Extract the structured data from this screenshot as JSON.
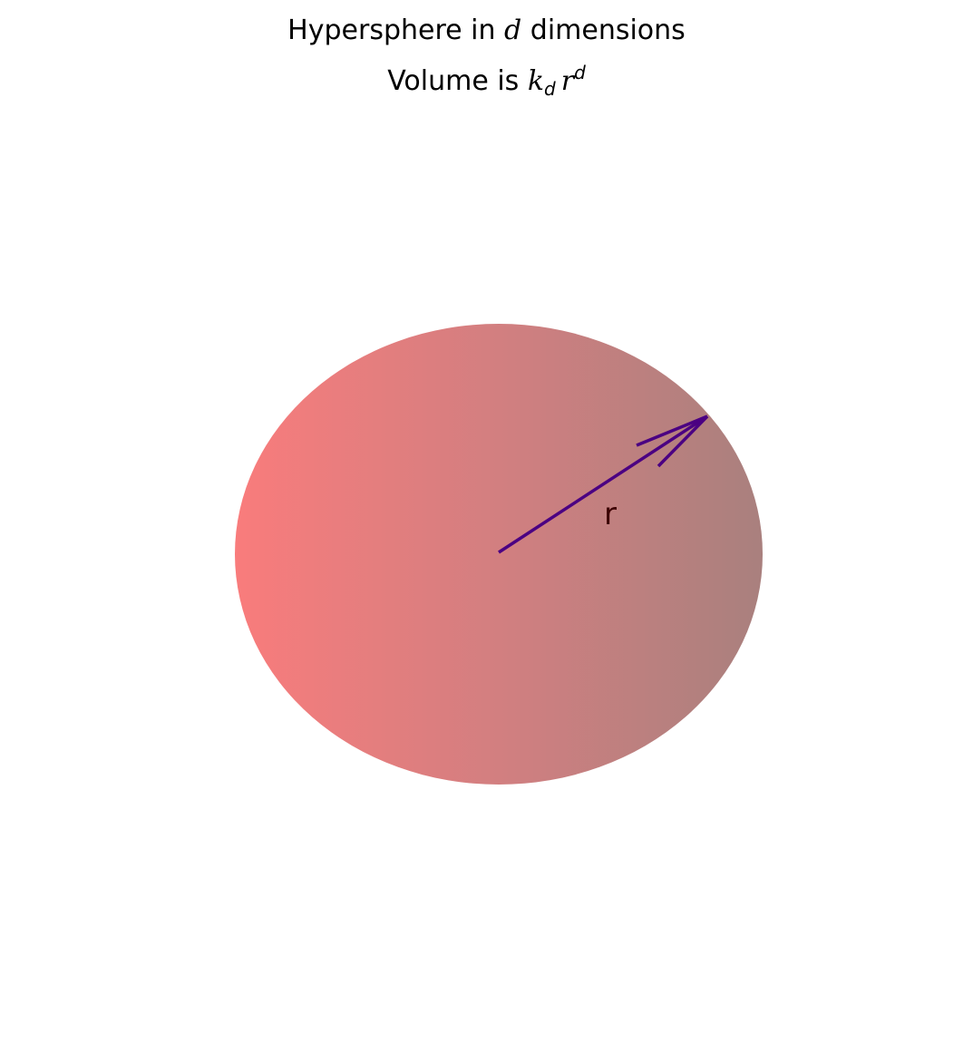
{
  "title": {
    "line1_prefix": "Hypersphere in ",
    "line1_var": "d",
    "line1_suffix": " dimensions",
    "line2_prefix": "Volume is ",
    "line2_k": "k",
    "line2_k_sub": "d",
    "line2_r": "r",
    "line2_r_sup": "d"
  },
  "diagram": {
    "radius_label": "r",
    "sphere_color_left": "#f97c7c",
    "sphere_color_mid": "#d27f80",
    "sphere_color_right": "#a9807e",
    "arrow_color": "#4b0082",
    "label_color": "#3b0000"
  }
}
